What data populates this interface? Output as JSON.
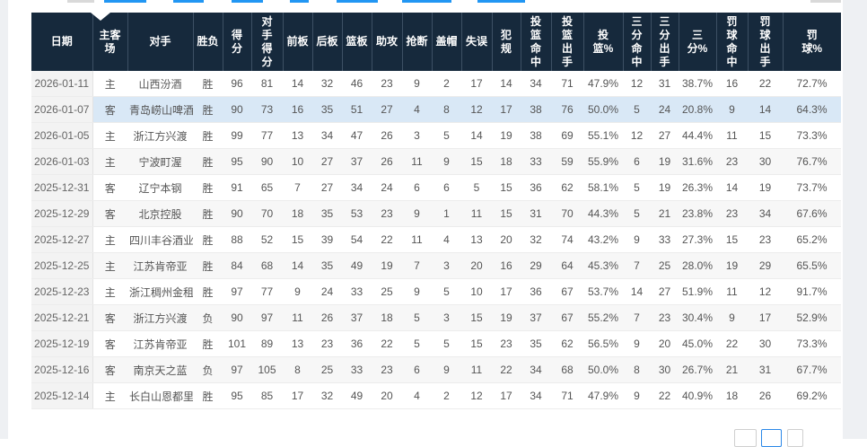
{
  "page": {
    "background": "#ffffff",
    "side_panel_color": "#eef0f3",
    "accent_blue": "#2196f3",
    "header_bg": "#16293c",
    "highlight_row_color": "#d9e8f6"
  },
  "table": {
    "columns": [
      {
        "key": "date",
        "label": "日期"
      },
      {
        "key": "venue",
        "label": "主客场"
      },
      {
        "key": "opponent",
        "label": "对手"
      },
      {
        "key": "result",
        "label": "胜负"
      },
      {
        "key": "points",
        "label": "得分"
      },
      {
        "key": "opp_points",
        "label": "对手得分"
      },
      {
        "key": "oreb",
        "label": "前板"
      },
      {
        "key": "dreb",
        "label": "后板"
      },
      {
        "key": "reb",
        "label": "篮板"
      },
      {
        "key": "ast",
        "label": "助攻"
      },
      {
        "key": "stl",
        "label": "抢断"
      },
      {
        "key": "blk",
        "label": "盖帽"
      },
      {
        "key": "tov",
        "label": "失误"
      },
      {
        "key": "pf",
        "label": "犯规"
      },
      {
        "key": "fgm",
        "label": "投篮命中"
      },
      {
        "key": "fga",
        "label": "投篮出手"
      },
      {
        "key": "fgp",
        "label": "投篮%"
      },
      {
        "key": "tpm",
        "label": "三分命中"
      },
      {
        "key": "tpa",
        "label": "三分出手"
      },
      {
        "key": "tpp",
        "label": "三分%"
      },
      {
        "key": "ftm",
        "label": "罚球命中"
      },
      {
        "key": "fta",
        "label": "罚球出手"
      },
      {
        "key": "ftp",
        "label": "罚球%"
      }
    ],
    "highlighted_row_index": 1,
    "rows": [
      [
        "2026-01-11",
        "主",
        "山西汾酒",
        "胜",
        "96",
        "81",
        "14",
        "32",
        "46",
        "23",
        "9",
        "2",
        "17",
        "14",
        "34",
        "71",
        "47.9%",
        "12",
        "31",
        "38.7%",
        "16",
        "22",
        "72.7%"
      ],
      [
        "2026-01-07",
        "客",
        "青岛崂山啤酒",
        "胜",
        "90",
        "73",
        "16",
        "35",
        "51",
        "27",
        "4",
        "8",
        "12",
        "17",
        "38",
        "76",
        "50.0%",
        "5",
        "24",
        "20.8%",
        "9",
        "14",
        "64.3%"
      ],
      [
        "2026-01-05",
        "主",
        "浙江方兴渡",
        "胜",
        "99",
        "77",
        "13",
        "34",
        "47",
        "26",
        "3",
        "5",
        "14",
        "19",
        "38",
        "69",
        "55.1%",
        "12",
        "27",
        "44.4%",
        "11",
        "15",
        "73.3%"
      ],
      [
        "2026-01-03",
        "主",
        "宁波町渥",
        "胜",
        "95",
        "90",
        "10",
        "27",
        "37",
        "26",
        "11",
        "9",
        "15",
        "18",
        "33",
        "59",
        "55.9%",
        "6",
        "19",
        "31.6%",
        "23",
        "30",
        "76.7%"
      ],
      [
        "2025-12-31",
        "客",
        "辽宁本钢",
        "胜",
        "91",
        "65",
        "7",
        "27",
        "34",
        "24",
        "6",
        "6",
        "5",
        "15",
        "36",
        "62",
        "58.1%",
        "5",
        "19",
        "26.3%",
        "14",
        "19",
        "73.7%"
      ],
      [
        "2025-12-29",
        "客",
        "北京控股",
        "胜",
        "90",
        "70",
        "18",
        "35",
        "53",
        "23",
        "9",
        "1",
        "11",
        "15",
        "31",
        "70",
        "44.3%",
        "5",
        "21",
        "23.8%",
        "23",
        "34",
        "67.6%"
      ],
      [
        "2025-12-27",
        "主",
        "四川丰谷酒业",
        "胜",
        "88",
        "52",
        "15",
        "39",
        "54",
        "22",
        "11",
        "4",
        "13",
        "20",
        "32",
        "74",
        "43.2%",
        "9",
        "33",
        "27.3%",
        "15",
        "23",
        "65.2%"
      ],
      [
        "2025-12-25",
        "主",
        "江苏肯帝亚",
        "胜",
        "84",
        "68",
        "14",
        "35",
        "49",
        "19",
        "7",
        "3",
        "20",
        "16",
        "29",
        "64",
        "45.3%",
        "7",
        "25",
        "28.0%",
        "19",
        "29",
        "65.5%"
      ],
      [
        "2025-12-23",
        "主",
        "浙江稠州金租",
        "胜",
        "97",
        "77",
        "9",
        "24",
        "33",
        "25",
        "9",
        "5",
        "10",
        "17",
        "36",
        "67",
        "53.7%",
        "14",
        "27",
        "51.9%",
        "11",
        "12",
        "91.7%"
      ],
      [
        "2025-12-21",
        "客",
        "浙江方兴渡",
        "负",
        "90",
        "97",
        "11",
        "26",
        "37",
        "18",
        "5",
        "3",
        "15",
        "19",
        "37",
        "67",
        "55.2%",
        "7",
        "23",
        "30.4%",
        "9",
        "17",
        "52.9%"
      ],
      [
        "2025-12-19",
        "客",
        "江苏肯帝亚",
        "胜",
        "101",
        "89",
        "13",
        "23",
        "36",
        "22",
        "5",
        "5",
        "15",
        "23",
        "35",
        "62",
        "56.5%",
        "9",
        "20",
        "45.0%",
        "22",
        "30",
        "73.3%"
      ],
      [
        "2025-12-16",
        "客",
        "南京天之蓝",
        "负",
        "97",
        "105",
        "8",
        "25",
        "33",
        "23",
        "6",
        "9",
        "11",
        "22",
        "34",
        "68",
        "50.0%",
        "8",
        "30",
        "26.7%",
        "21",
        "31",
        "67.7%"
      ],
      [
        "2025-12-14",
        "主",
        "长白山恩都里",
        "胜",
        "95",
        "85",
        "17",
        "32",
        "49",
        "20",
        "4",
        "2",
        "12",
        "17",
        "34",
        "71",
        "47.9%",
        "9",
        "22",
        "40.9%",
        "18",
        "26",
        "69.2%"
      ]
    ]
  },
  "pagination": {
    "button_count": 3,
    "active_index": 1
  }
}
